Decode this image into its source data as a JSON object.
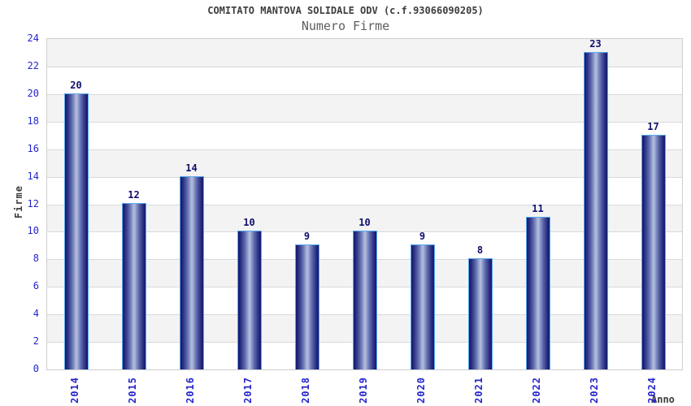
{
  "header": {
    "title": "COMITATO MANTOVA SOLIDALE ODV (c.f.93066090205)",
    "subtitle": "Numero Firme"
  },
  "chart_data": {
    "type": "bar",
    "title": "COMITATO MANTOVA SOLIDALE ODV (c.f.93066090205)",
    "subtitle": "Numero Firme",
    "categories": [
      "2014",
      "2015",
      "2016",
      "2017",
      "2018",
      "2019",
      "2020",
      "2021",
      "2022",
      "2023",
      "2024"
    ],
    "values": [
      20,
      12,
      14,
      10,
      9,
      10,
      9,
      8,
      11,
      23,
      17
    ],
    "xlabel": "Anno",
    "ylabel": "Firme",
    "ylim": [
      0,
      24
    ],
    "yticks": [
      0,
      2,
      4,
      6,
      8,
      10,
      12,
      14,
      16,
      18,
      20,
      22,
      24
    ],
    "grid": "horizontal-bands",
    "legend": "none",
    "value_labels": true
  },
  "colors": {
    "tick_label_blue": "#2424cc",
    "value_label_navy": "#10106e",
    "bar_edge": "#5aabee",
    "bar_dark": "#14156e",
    "bar_light": "#b7c0e0",
    "band_gray": "#f3f3f3",
    "band_white": "#ffffff",
    "grid_line": "#d9d9d9",
    "title_color": "#3d3d3d",
    "subtitle_color": "#5e5e5e"
  }
}
